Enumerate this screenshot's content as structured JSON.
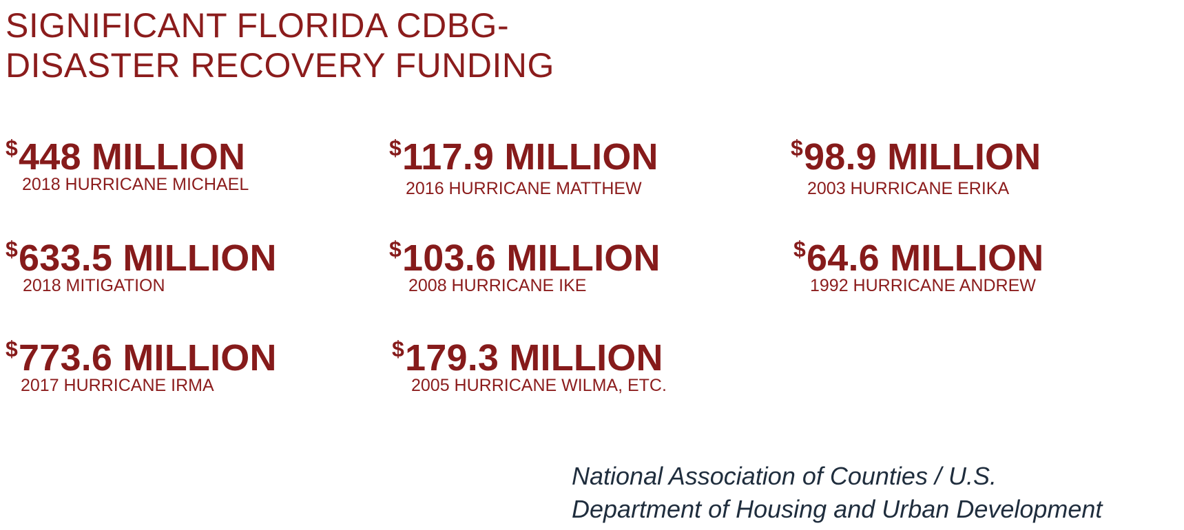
{
  "title": {
    "line1": "SIGNIFICANT FLORIDA CDBG-",
    "line2": "DISASTER RECOVERY FUNDING"
  },
  "currency_symbol": "$",
  "stats": [
    {
      "amount": "448 MILLION",
      "label": "2018 HURRICANE MICHAEL"
    },
    {
      "amount": "117.9 MILLION",
      "label": "2016 HURRICANE MATTHEW"
    },
    {
      "amount": "98.9 MILLION",
      "label": "2003 HURRICANE ERIKA"
    },
    {
      "amount": "633.5 MILLION",
      "label": "2018 MITIGATION"
    },
    {
      "amount": "103.6 MILLION",
      "label": "2008 HURRICANE IKE"
    },
    {
      "amount": "64.6 MILLION",
      "label": "1992 HURRICANE ANDREW"
    },
    {
      "amount": "773.6 MILLION",
      "label": "2017 HURRICANE IRMA"
    },
    {
      "amount": "179.3 MILLION",
      "label": "2005 HURRICANE WILMA, ETC."
    }
  ],
  "source": {
    "line1": "National Association of Counties / U.S.",
    "line2": "Department of Housing and Urban Development"
  },
  "colors": {
    "accent": "#8b1c1c",
    "source_text": "#1f2d3d",
    "background": "#ffffff"
  }
}
